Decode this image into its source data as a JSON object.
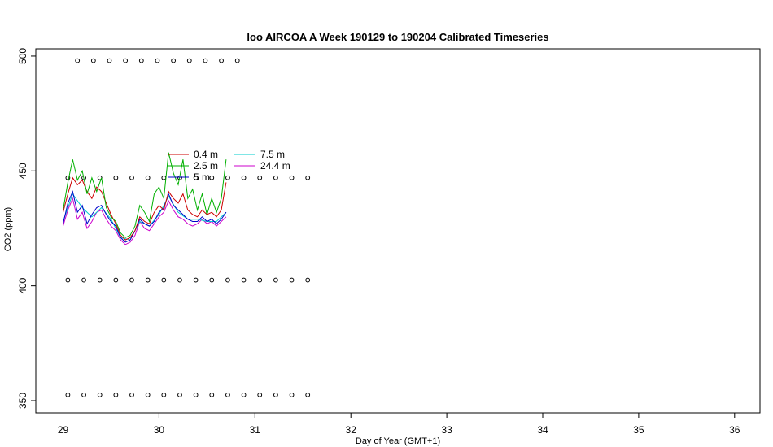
{
  "chart_data": {
    "type": "line",
    "title": "loo AIRCOA A  Week 190129 to 190204  Calibrated Timeseries",
    "xlabel": "Day of Year (GMT+1)",
    "ylabel": "CO2 (ppm)",
    "xlim": [
      29,
      36
    ],
    "ylim": [
      350,
      500
    ],
    "xticks": [
      "29",
      "30",
      "31",
      "32",
      "33",
      "34",
      "35",
      "36"
    ],
    "yticks": [
      "350",
      "400",
      "450",
      "500"
    ],
    "legend_position": "upper-left inside",
    "grid": false,
    "colors": {
      "0.4 m": "#cc0000",
      "2.5 m": "#00b000",
      "5 m": "#0000cc",
      "7.5 m": "#00cccc",
      "24.4 m": "#cc00cc",
      "markers": "#000000"
    },
    "series": [
      {
        "name": "0.4 m",
        "x": [
          29.0,
          29.05,
          29.1,
          29.15,
          29.2,
          29.25,
          29.3,
          29.35,
          29.4,
          29.45,
          29.5,
          29.55,
          29.6,
          29.65,
          29.7,
          29.75,
          29.8,
          29.85,
          29.9,
          29.95,
          30.0,
          30.05,
          30.1,
          30.15,
          30.2,
          30.25,
          30.3,
          30.35,
          30.4,
          30.45,
          30.5,
          30.55,
          30.6,
          30.65,
          30.7
        ],
        "y": [
          432,
          440,
          447,
          444,
          446,
          441,
          438,
          443,
          441,
          436,
          431,
          427,
          422,
          420,
          421,
          424,
          430,
          428,
          427,
          432,
          435,
          433,
          441,
          438,
          436,
          440,
          433,
          431,
          430,
          433,
          431,
          432,
          430,
          433,
          445
        ]
      },
      {
        "name": "2.5 m",
        "x": [
          29.0,
          29.05,
          29.1,
          29.15,
          29.2,
          29.25,
          29.3,
          29.35,
          29.4,
          29.45,
          29.5,
          29.55,
          29.6,
          29.65,
          29.7,
          29.75,
          29.8,
          29.85,
          29.9,
          29.95,
          30.0,
          30.05,
          30.1,
          30.15,
          30.2,
          30.25,
          30.3,
          30.35,
          30.4,
          30.45,
          30.5,
          30.55,
          30.6,
          30.65,
          30.7
        ],
        "y": [
          433,
          445,
          455,
          446,
          450,
          440,
          447,
          441,
          447,
          434,
          430,
          428,
          423,
          421,
          422,
          426,
          435,
          432,
          428,
          440,
          443,
          438,
          458,
          449,
          444,
          455,
          438,
          442,
          433,
          440,
          431,
          438,
          432,
          438,
          455
        ]
      },
      {
        "name": "5 m",
        "x": [
          29.0,
          29.05,
          29.1,
          29.15,
          29.2,
          29.25,
          29.3,
          29.35,
          29.4,
          29.45,
          29.5,
          29.55,
          29.6,
          29.65,
          29.7,
          29.75,
          29.8,
          29.85,
          29.9,
          29.95,
          30.0,
          30.05,
          30.1,
          30.15,
          30.2,
          30.25,
          30.3,
          30.35,
          30.4,
          30.45,
          30.5,
          30.55,
          30.6,
          30.65,
          30.7
        ],
        "y": [
          427,
          436,
          441,
          432,
          435,
          427,
          431,
          434,
          435,
          431,
          428,
          426,
          421,
          419,
          420,
          424,
          429,
          427,
          426,
          428,
          432,
          434,
          440,
          435,
          433,
          431,
          429,
          428,
          428,
          430,
          428,
          429,
          427,
          429,
          432
        ]
      },
      {
        "name": "7.5 m",
        "x": [
          29.0,
          29.1,
          29.2,
          29.3,
          29.4,
          29.5,
          29.6,
          29.7,
          29.8,
          29.9,
          30.0,
          30.1,
          30.2,
          30.3,
          30.4,
          30.5,
          30.6,
          30.7
        ],
        "y": [
          428,
          440,
          434,
          430,
          434,
          429,
          421,
          420,
          428,
          426,
          431,
          439,
          432,
          429,
          429,
          428,
          428,
          432
        ]
      },
      {
        "name": "24.4 m",
        "x": [
          29.0,
          29.05,
          29.1,
          29.15,
          29.2,
          29.25,
          29.3,
          29.35,
          29.4,
          29.45,
          29.5,
          29.55,
          29.6,
          29.65,
          29.7,
          29.75,
          29.8,
          29.85,
          29.9,
          29.95,
          30.0,
          30.05,
          30.1,
          30.15,
          30.2,
          30.25,
          30.3,
          30.35,
          30.4,
          30.45,
          30.5,
          30.55,
          30.6,
          30.65,
          30.7
        ],
        "y": [
          426,
          433,
          438,
          429,
          432,
          425,
          428,
          432,
          433,
          429,
          426,
          424,
          420,
          418,
          419,
          422,
          428,
          425,
          424,
          427,
          430,
          432,
          437,
          433,
          430,
          429,
          427,
          426,
          427,
          429,
          427,
          428,
          426,
          428,
          430
        ]
      }
    ],
    "marker_rows": [
      {
        "y": 498,
        "x_start": 29.15,
        "x_end": 30.95,
        "step": 0.1667
      },
      {
        "y": 447,
        "x_start": 29.05,
        "x_end": 31.65,
        "step": 0.1667
      },
      {
        "y": 402.5,
        "x_start": 29.05,
        "x_end": 31.7,
        "step": 0.1667
      },
      {
        "y": 352.5,
        "x_start": 29.05,
        "x_end": 31.7,
        "step": 0.1667
      }
    ]
  }
}
